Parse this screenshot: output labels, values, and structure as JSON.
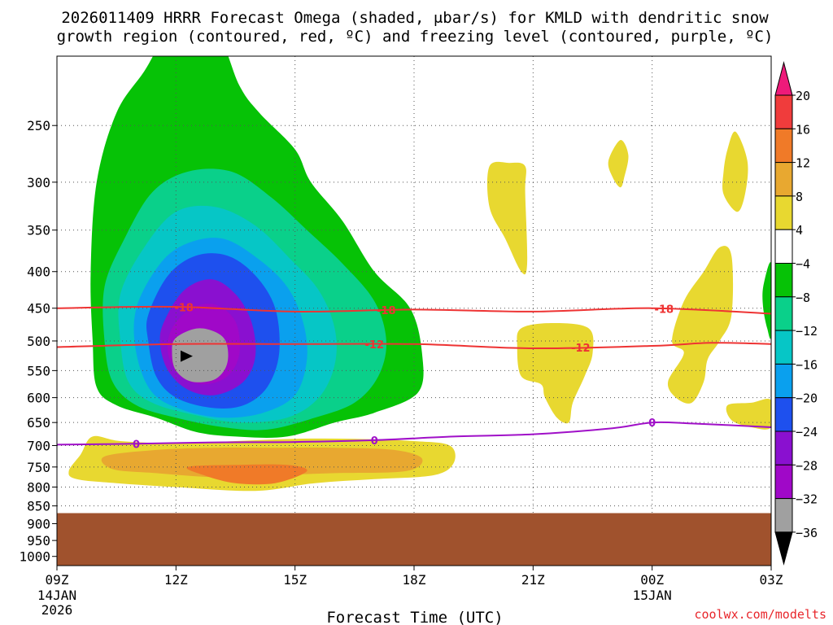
{
  "chart_data": {
    "type": "contour",
    "title_line1": "2026011409 HRRR Forecast Omega (shaded, μbar/s) for KMLD with dendritic snow",
    "title_line2": "growth region (contoured, red, ºC) and freezing level (contoured, purple, ºC)",
    "xlabel": "Forecast Time (UTC)",
    "credit": "coolwx.com/modelts",
    "x_ticks": [
      {
        "hour": 0,
        "label": "09Z",
        "sub1": "14JAN",
        "sub2": "2026"
      },
      {
        "hour": 3,
        "label": "12Z",
        "sub1": "",
        "sub2": ""
      },
      {
        "hour": 6,
        "label": "15Z",
        "sub1": "",
        "sub2": ""
      },
      {
        "hour": 9,
        "label": "18Z",
        "sub1": "",
        "sub2": ""
      },
      {
        "hour": 12,
        "label": "21Z",
        "sub1": "",
        "sub2": ""
      },
      {
        "hour": 15,
        "label": "00Z",
        "sub1": "15JAN",
        "sub2": ""
      },
      {
        "hour": 18,
        "label": "03Z",
        "sub1": "",
        "sub2": ""
      }
    ],
    "y_ticks": [
      250,
      300,
      350,
      400,
      450,
      500,
      550,
      600,
      650,
      700,
      750,
      800,
      850,
      900,
      950,
      1000
    ],
    "ylim_hpa": [
      1030,
      200
    ],
    "xlim_hours": [
      0,
      18
    ],
    "surface_pressure_hpa": 870,
    "colorbar": {
      "ticks": [
        "20",
        "16",
        "12",
        "8",
        "4",
        "−4",
        "−8",
        "−12",
        "−16",
        "−20",
        "−24",
        "−28",
        "−32",
        "−36"
      ],
      "colors": [
        "#ee1a7a",
        "#f03c3c",
        "#f07a28",
        "#e8a830",
        "#e8d830",
        "#ffffff",
        "#06c206",
        "#0ad08a",
        "#06c6c6",
        "#0aa0ee",
        "#1e50ee",
        "#8a10d0",
        "#a008c8",
        "#a0a0a0",
        "#000000"
      ]
    },
    "omega_regions": [
      {
        "level": "-8",
        "color": "#06c206",
        "pts": [
          [
            0.85,
            400
          ],
          [
            1.0,
            300
          ],
          [
            1.5,
            240
          ],
          [
            2.2,
            210
          ],
          [
            3.0,
            180
          ],
          [
            4.0,
            185
          ],
          [
            4.6,
            220
          ],
          [
            5.1,
            240
          ],
          [
            6.0,
            270
          ],
          [
            6.4,
            300
          ],
          [
            7.2,
            340
          ],
          [
            8.0,
            400
          ],
          [
            8.9,
            450
          ],
          [
            9.2,
            520
          ],
          [
            9.1,
            590
          ],
          [
            8.0,
            630
          ],
          [
            7.0,
            650
          ],
          [
            5.8,
            680
          ],
          [
            4.5,
            680
          ],
          [
            3.5,
            670
          ],
          [
            2.5,
            640
          ],
          [
            1.5,
            615
          ],
          [
            1.0,
            580
          ],
          [
            0.9,
            500
          ]
        ]
      },
      {
        "level": "-12",
        "color": "#0ad08a",
        "pts": [
          [
            1.2,
            420
          ],
          [
            1.7,
            360
          ],
          [
            2.4,
            310
          ],
          [
            3.3,
            290
          ],
          [
            4.4,
            290
          ],
          [
            5.4,
            315
          ],
          [
            6.3,
            350
          ],
          [
            7.2,
            390
          ],
          [
            8.0,
            440
          ],
          [
            8.3,
            500
          ],
          [
            8.1,
            560
          ],
          [
            7.5,
            610
          ],
          [
            6.5,
            640
          ],
          [
            5.3,
            665
          ],
          [
            4.2,
            660
          ],
          [
            3.0,
            640
          ],
          [
            2.0,
            615
          ],
          [
            1.4,
            570
          ],
          [
            1.2,
            500
          ]
        ]
      },
      {
        "level": "-16",
        "color": "#06c6c6",
        "pts": [
          [
            1.6,
            430
          ],
          [
            2.2,
            370
          ],
          [
            3.0,
            330
          ],
          [
            4.0,
            325
          ],
          [
            5.0,
            345
          ],
          [
            5.9,
            385
          ],
          [
            6.6,
            425
          ],
          [
            7.0,
            480
          ],
          [
            7.0,
            540
          ],
          [
            6.6,
            600
          ],
          [
            5.8,
            640
          ],
          [
            4.6,
            650
          ],
          [
            3.5,
            635
          ],
          [
            2.4,
            610
          ],
          [
            1.8,
            570
          ],
          [
            1.6,
            500
          ]
        ]
      },
      {
        "level": "-20",
        "color": "#0aa0ee",
        "pts": [
          [
            2.0,
            450
          ],
          [
            2.6,
            390
          ],
          [
            3.3,
            365
          ],
          [
            4.2,
            360
          ],
          [
            5.1,
            385
          ],
          [
            5.8,
            420
          ],
          [
            6.2,
            470
          ],
          [
            6.3,
            530
          ],
          [
            6.0,
            595
          ],
          [
            5.2,
            630
          ],
          [
            4.2,
            640
          ],
          [
            3.2,
            625
          ],
          [
            2.4,
            590
          ],
          [
            2.0,
            520
          ]
        ]
      },
      {
        "level": "-24",
        "color": "#1e50ee",
        "pts": [
          [
            2.3,
            460
          ],
          [
            2.8,
            405
          ],
          [
            3.5,
            380
          ],
          [
            4.3,
            380
          ],
          [
            5.0,
            405
          ],
          [
            5.5,
            450
          ],
          [
            5.6,
            520
          ],
          [
            5.3,
            580
          ],
          [
            4.7,
            615
          ],
          [
            3.9,
            620
          ],
          [
            3.0,
            600
          ],
          [
            2.5,
            560
          ],
          [
            2.3,
            500
          ]
        ]
      },
      {
        "level": "-28",
        "color": "#8a10d0",
        "pts": [
          [
            2.7,
            470
          ],
          [
            3.2,
            425
          ],
          [
            3.9,
            410
          ],
          [
            4.5,
            430
          ],
          [
            4.9,
            470
          ],
          [
            5.0,
            525
          ],
          [
            4.7,
            570
          ],
          [
            4.0,
            595
          ],
          [
            3.3,
            585
          ],
          [
            2.8,
            550
          ],
          [
            2.6,
            505
          ]
        ]
      },
      {
        "level": "-32",
        "color": "#a008c8",
        "pts": [
          [
            2.9,
            480
          ],
          [
            3.4,
            450
          ],
          [
            4.0,
            445
          ],
          [
            4.5,
            470
          ],
          [
            4.6,
            520
          ],
          [
            4.3,
            560
          ],
          [
            3.7,
            575
          ],
          [
            3.1,
            560
          ],
          [
            2.8,
            520
          ]
        ]
      },
      {
        "level": "-36",
        "color": "#a0a0a0",
        "pts": [
          [
            3.0,
            495
          ],
          [
            3.6,
            480
          ],
          [
            4.2,
            495
          ],
          [
            4.3,
            535
          ],
          [
            4.0,
            565
          ],
          [
            3.4,
            570
          ],
          [
            3.0,
            550
          ],
          [
            2.9,
            520
          ]
        ]
      },
      {
        "level": "4",
        "color": "#e8d830",
        "pts": [
          [
            0.3,
            760
          ],
          [
            0.6,
            720
          ],
          [
            0.9,
            680
          ],
          [
            1.6,
            690
          ],
          [
            3.0,
            695
          ],
          [
            4.5,
            690
          ],
          [
            6.0,
            685
          ],
          [
            7.5,
            685
          ],
          [
            9.0,
            690
          ],
          [
            9.9,
            700
          ],
          [
            10.0,
            740
          ],
          [
            9.5,
            770
          ],
          [
            8.0,
            780
          ],
          [
            6.5,
            790
          ],
          [
            5.0,
            810
          ],
          [
            3.0,
            800
          ],
          [
            1.5,
            790
          ],
          [
            0.5,
            780
          ]
        ]
      },
      {
        "level": "8",
        "color": "#e8a830",
        "pts": [
          [
            1.2,
            725
          ],
          [
            2.5,
            710
          ],
          [
            4.0,
            705
          ],
          [
            5.5,
            705
          ],
          [
            7.0,
            705
          ],
          [
            8.5,
            710
          ],
          [
            9.2,
            730
          ],
          [
            8.8,
            760
          ],
          [
            7.0,
            765
          ],
          [
            5.5,
            770
          ],
          [
            4.0,
            775
          ],
          [
            2.5,
            765
          ],
          [
            1.4,
            755
          ]
        ]
      },
      {
        "level": "12",
        "color": "#f07a28",
        "pts": [
          [
            3.3,
            750
          ],
          [
            4.5,
            745
          ],
          [
            5.8,
            745
          ],
          [
            6.3,
            760
          ],
          [
            5.5,
            790
          ],
          [
            4.5,
            790
          ],
          [
            3.7,
            770
          ]
        ]
      },
      {
        "level": "4",
        "color": "#e8d830",
        "pts": [
          [
            10.9,
            285
          ],
          [
            11.4,
            282
          ],
          [
            11.8,
            285
          ],
          [
            11.8,
            310
          ],
          [
            11.85,
            390
          ],
          [
            11.7,
            400
          ],
          [
            11.3,
            360
          ],
          [
            10.9,
            325
          ]
        ]
      },
      {
        "level": "4",
        "color": "#e8d830",
        "pts": [
          [
            11.7,
            480
          ],
          [
            12.5,
            472
          ],
          [
            13.4,
            480
          ],
          [
            13.5,
            520
          ],
          [
            13.3,
            560
          ],
          [
            13.0,
            610
          ],
          [
            12.9,
            650
          ],
          [
            12.6,
            640
          ],
          [
            12.3,
            600
          ],
          [
            12.2,
            575
          ],
          [
            11.7,
            560
          ],
          [
            11.6,
            510
          ]
        ]
      },
      {
        "level": "4",
        "color": "#e8d830",
        "pts": [
          [
            14.2,
            262
          ],
          [
            14.4,
            275
          ],
          [
            14.3,
            295
          ],
          [
            14.2,
            305
          ],
          [
            14.0,
            295
          ],
          [
            13.9,
            280
          ]
        ]
      },
      {
        "level": "4",
        "color": "#e8d830",
        "pts": [
          [
            17.1,
            255
          ],
          [
            17.4,
            280
          ],
          [
            17.35,
            310
          ],
          [
            17.15,
            330
          ],
          [
            16.8,
            312
          ],
          [
            16.8,
            290
          ],
          [
            16.9,
            270
          ]
        ]
      },
      {
        "level": "4",
        "color": "#e8d830",
        "pts": [
          [
            15.8,
            520
          ],
          [
            15.5,
            500
          ],
          [
            15.8,
            440
          ],
          [
            16.3,
            400
          ],
          [
            16.7,
            370
          ],
          [
            17.0,
            380
          ],
          [
            17.0,
            460
          ],
          [
            16.7,
            500
          ],
          [
            16.4,
            530
          ],
          [
            16.3,
            570
          ],
          [
            16.0,
            610
          ],
          [
            15.6,
            600
          ],
          [
            15.4,
            570
          ]
        ]
      },
      {
        "level": "4",
        "color": "#e8d830",
        "pts": [
          [
            16.9,
            615
          ],
          [
            17.5,
            610
          ],
          [
            18.0,
            605
          ],
          [
            18.0,
            660
          ],
          [
            17.5,
            660
          ],
          [
            17.0,
            645
          ]
        ]
      },
      {
        "level": "-8",
        "color": "#06c206",
        "pts": [
          [
            18.0,
            390
          ],
          [
            17.8,
            420
          ],
          [
            17.8,
            450
          ],
          [
            17.9,
            480
          ],
          [
            18.0,
            490
          ]
        ]
      }
    ],
    "dgz_contours": [
      {
        "label": "-18",
        "color": "#ee3333",
        "label_hours": [
          3.2,
          8.3,
          15.3
        ],
        "pts": [
          [
            0,
            450
          ],
          [
            3,
            448
          ],
          [
            6,
            455
          ],
          [
            9,
            452
          ],
          [
            12,
            455
          ],
          [
            15,
            450
          ],
          [
            18,
            458
          ]
        ]
      },
      {
        "label": "-12",
        "color": "#ee3333",
        "label_hours": [
          8.0,
          13.2
        ],
        "pts": [
          [
            0,
            510
          ],
          [
            3,
            505
          ],
          [
            6,
            505
          ],
          [
            9,
            505
          ],
          [
            12,
            512
          ],
          [
            15,
            508
          ],
          [
            16.5,
            503
          ],
          [
            18,
            505
          ]
        ]
      }
    ],
    "freezing_contours": [
      {
        "label": "0",
        "color": "#a010c8",
        "label_hours": [
          2.0,
          8.0,
          15.0
        ],
        "pts": [
          [
            0,
            698
          ],
          [
            2,
            696
          ],
          [
            4,
            693
          ],
          [
            6,
            692
          ],
          [
            8,
            688
          ],
          [
            10,
            680
          ],
          [
            12,
            675
          ],
          [
            14,
            662
          ],
          [
            15,
            650
          ],
          [
            16,
            652
          ],
          [
            18,
            660
          ]
        ]
      }
    ],
    "max_marker": {
      "hour": 3.3,
      "hpa": 525
    }
  }
}
